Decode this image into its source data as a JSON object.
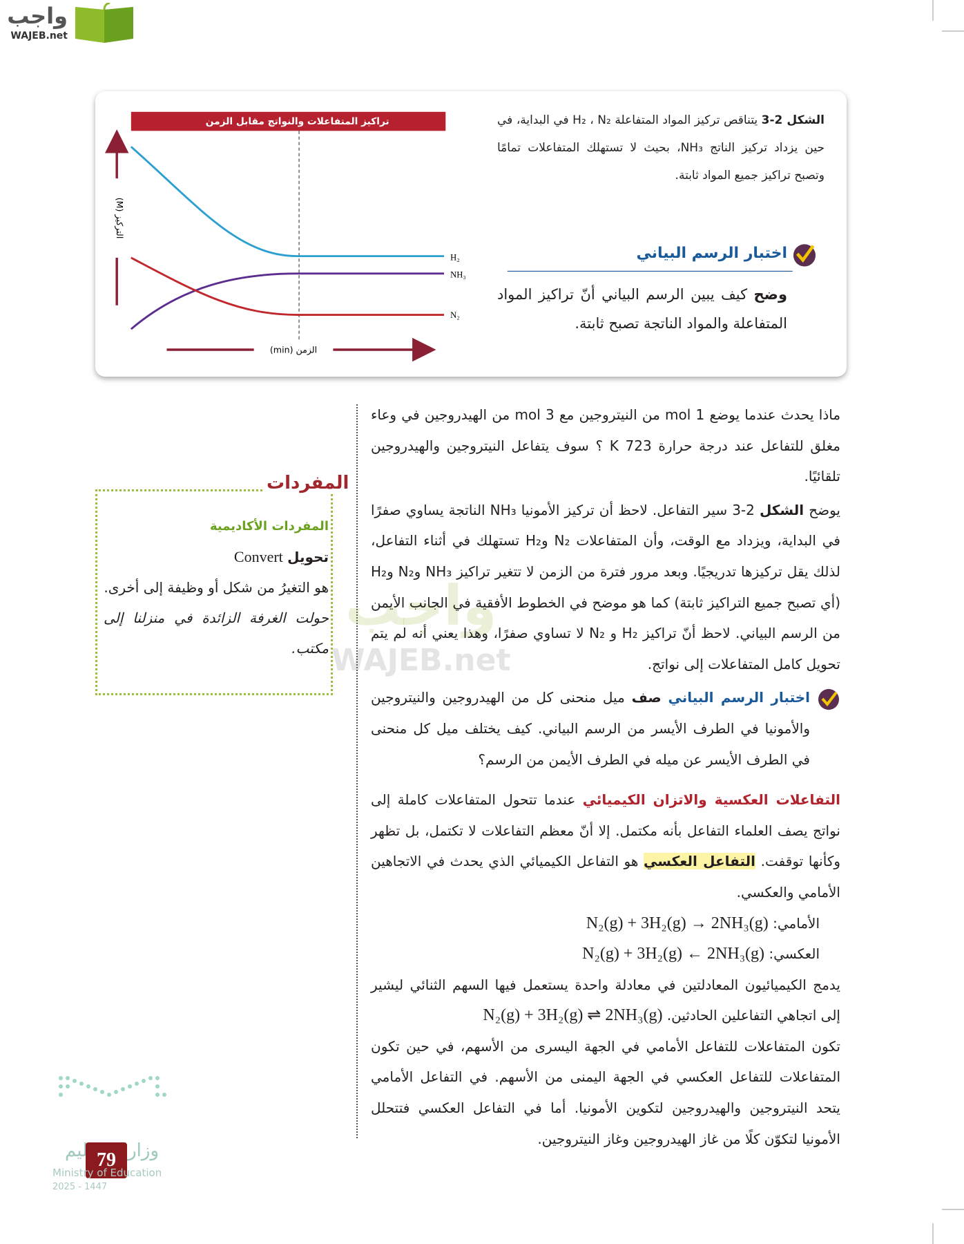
{
  "logo": {
    "arabic": "واجب",
    "latin": "WAJEB.net"
  },
  "figure": {
    "caption_label": "الشكل 2-3",
    "caption_text": "يتناقص تركيز المواد المتفاعلة H₂ ، N₂ في البداية، في حين يزداد تركيز الناتج NH₃، بحيث لا تستهلك المتفاعلات تمامًا وتصبح تراكيز جميع المواد ثابتة.",
    "chart_title": "تراكيز المتفاعلات والنواتج مقابل الزمن",
    "y_axis": "التركيز (M)",
    "x_axis": "الزمن (min)",
    "curve_labels": [
      "H₂",
      "NH₃",
      "N₂"
    ],
    "graph_check": {
      "title": "اختبار الرسم البياني",
      "lead": "وضح",
      "text": " كيف يبين الرسم البياني أنّ تراكيز المواد المتفاعلة والمواد الناتجة تصبح ثابتة."
    }
  },
  "paragraphs": [
    {
      "text": "ماذا يحدث عندما يوضع 1 mol من النيتروجين مع 3 mol من الهيدروجين في وعاء مغلق للتفاعل عند درجة حرارة 723 K ؟ سوف يتفاعل النيتروجين والهيدروجين تلقائيًا."
    },
    {
      "before": "يوضح ",
      "bold": "الشكل",
      "after": " 2-3 سير التفاعل. لاحظ أن تركيز الأمونيا NH₃ الناتجة يساوي صفرًا في البداية، ويزداد مع الوقت، وأن المتفاعلات N₂ وH₂ تستهلك في أثناء التفاعل، لذلك يقل تركيزها تدريجيًا. وبعد مرور فترة من الزمن لا تتغير تراكيز NH₃ وN₂ وH₂ (أي تصبح جميع التراكيز ثابتة) كما هو موضح في الخطوط الأفقية في الجانب الأيمن من الرسم البياني. لاحظ أنّ تراكيز H₂ و N₂ لا تساوي صفرًا، وهذا يعني أنه لم يتم تحويل كامل المتفاعلات إلى نواتج."
    }
  ],
  "graph_check_2": {
    "title": "اختبار الرسم البياني",
    "lead": "صف",
    "text": " ميل منحنى كل من الهيدروجين والنيتروجين والأمونيا في الطرف الأيسر من الرسم البياني. كيف يختلف ميل كل منحنى في الطرف الأيسر عن ميله في الطرف الأيمن من الرسم؟"
  },
  "section": {
    "heading": "التفاعلات العكسية والاتزان الكيميائي",
    "text": " عندما تتحول المتفاعلات كاملة إلى نواتج يصف العلماء التفاعل بأنه مكتمل. إلا أنّ معظم التفاعلات لا تكتمل، بل تظهر وكأنها توقفت. ",
    "term": "التفاعل العكسي",
    "after": " هو التفاعل الكيميائي الذي يحدث في الاتجاهين الأمامي والعكسي.",
    "equations": [
      {
        "label": "الأمامي:",
        "equation": "N₂(g) + 3H₂(g) → 2NH₃(g)"
      },
      {
        "label": "العكسي:",
        "equation": "N₂(g) + 3H₂(g) ← 2NH₃(g)"
      }
    ],
    "combined_text": "يدمج الكيميائيون المعادلتين في معادلة واحدة يستعمل فيها السهم الثنائي ليشير إلى اتجاهي التفاعلين الحادثين. ",
    "combined_equation": "N₂(g) + 3H₂(g) ⇌ 2NH₃(g)",
    "closing": "تكون المتفاعلات للتفاعل الأمامي في الجهة اليسرى من الأسهم، في حين تكون المتفاعلات للتفاعل العكسي في الجهة اليمنى من الأسهم. في التفاعل الأمامي يتحد النيتروجين والهيدروجين لتكوين الأمونيا. أما في التفاعل العكسي فتتحلل الأمونيا لتكوّن كلًا من غاز الهيدروجين وغاز النيتروجين."
  },
  "vocabulary": {
    "title": "المفردات",
    "subtitle": "المفردات الأكاديمية",
    "term": "تحويل",
    "term_en": "Convert",
    "definition": "هو التغيرُ من شكل أو وظيفة إلى أخرى.",
    "example": "حولت الغرفة الزائدة في منزلنا إلى مكتب."
  },
  "watermark": {
    "arabic": "واجب",
    "latin": "WAJEB.net"
  },
  "footer": {
    "page": "79",
    "ministry_ar": "وزارة التعليم",
    "ministry_en": "Ministry of Education",
    "years": "2025 - 1447"
  }
}
